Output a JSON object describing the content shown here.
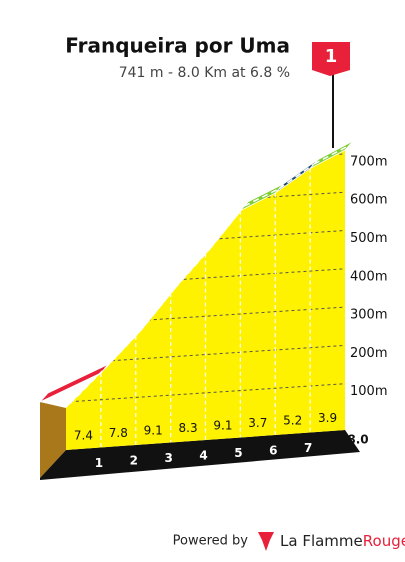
{
  "chart_data": {
    "type": "climb-profile",
    "title": "Franqueira por Uma",
    "subtitle": "741 m - 8.0 Km at 6.8 %",
    "category_flag": "1",
    "categories": [
      "1",
      "2",
      "3",
      "4",
      "5",
      "6",
      "7",
      "8.0"
    ],
    "values": [
      7.4,
      7.8,
      9.1,
      8.3,
      9.1,
      3.7,
      5.2,
      3.9
    ],
    "colors": [
      "#e8203a",
      "#e8203a",
      "#111111",
      "#e8203a",
      "#e8203a",
      "#7ccf32",
      "#1e4f7a",
      "#7ccf32"
    ],
    "ylim": [
      0,
      800
    ],
    "yticks": [
      {
        "value": 100,
        "label": "100m"
      },
      {
        "value": 200,
        "label": "200m"
      },
      {
        "value": 300,
        "label": "300m"
      },
      {
        "value": 400,
        "label": "400m"
      },
      {
        "value": 500,
        "label": "500m"
      },
      {
        "value": 600,
        "label": "600m"
      },
      {
        "value": 700,
        "label": "700m"
      }
    ],
    "grid": true
  },
  "footer": {
    "powered_by": "Powered by",
    "brand": "La Flamme",
    "brand_accent": "Rouge"
  }
}
